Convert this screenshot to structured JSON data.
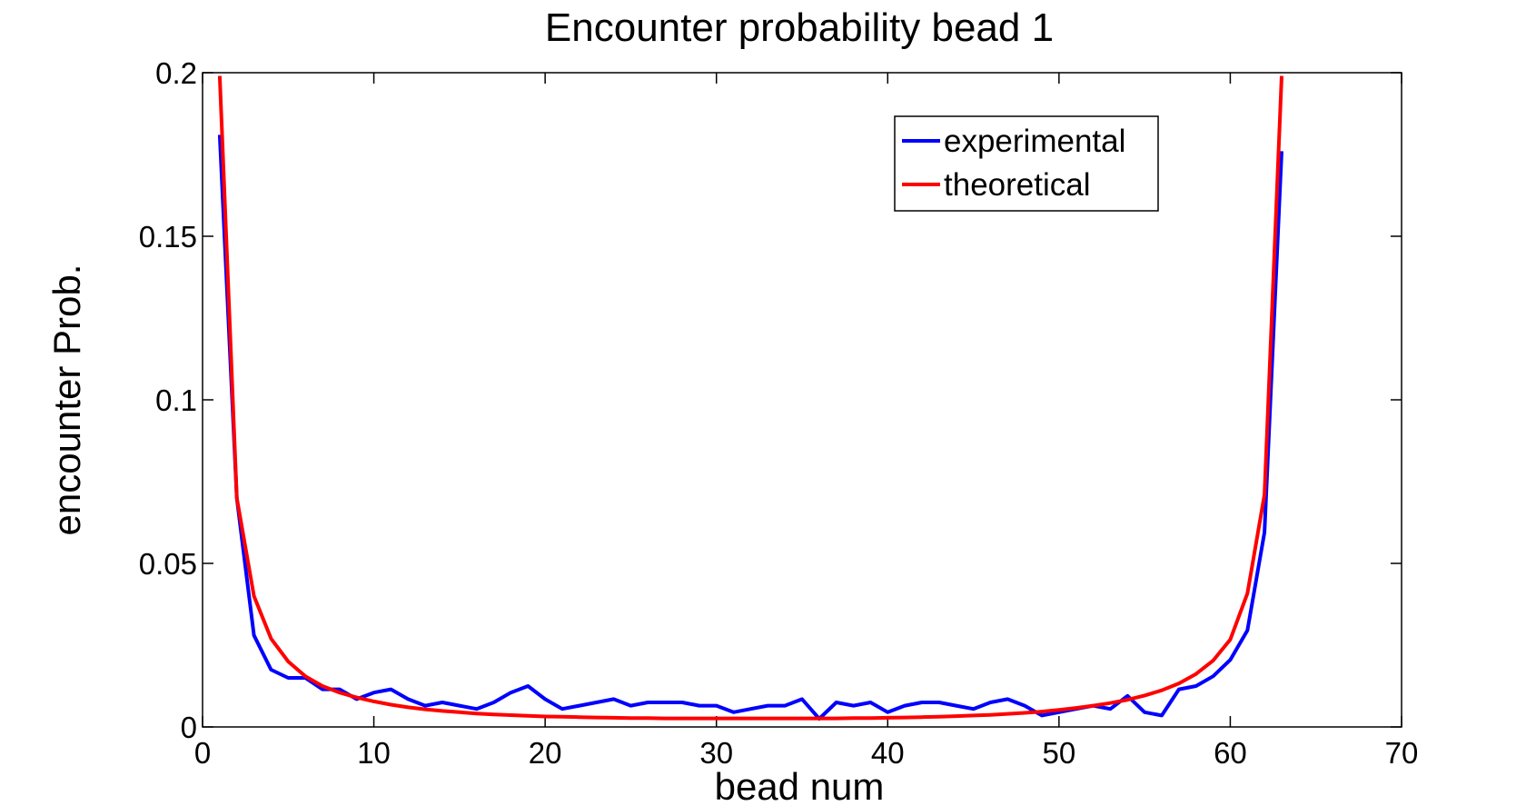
{
  "chart_data": {
    "type": "line",
    "title": "Encounter probability bead 1",
    "xlabel": "bead num",
    "ylabel": "encounter Prob.",
    "xlim": [
      0,
      70
    ],
    "ylim": [
      0,
      0.2
    ],
    "xticks": [
      0,
      10,
      20,
      30,
      40,
      50,
      60,
      70
    ],
    "xtick_labels": [
      "0",
      "10",
      "20",
      "30",
      "40",
      "50",
      "60",
      "70"
    ],
    "yticks": [
      0,
      0.05,
      0.1,
      0.15,
      0.2
    ],
    "ytick_labels": [
      "0",
      "0.05",
      "0.1",
      "0.15",
      "0.2"
    ],
    "grid": false,
    "legend_position": "top-right",
    "series": [
      {
        "name": "experimental",
        "color": "#0000ff",
        "x": [
          1,
          2,
          3,
          4,
          5,
          6,
          7,
          8,
          9,
          10,
          11,
          12,
          13,
          14,
          15,
          16,
          17,
          18,
          19,
          20,
          21,
          22,
          23,
          24,
          25,
          26,
          27,
          28,
          29,
          30,
          31,
          32,
          33,
          34,
          35,
          36,
          37,
          38,
          39,
          40,
          41,
          42,
          43,
          44,
          45,
          46,
          47,
          48,
          49,
          50,
          51,
          52,
          53,
          54,
          55,
          56,
          57,
          58,
          59,
          60,
          61,
          62,
          63
        ],
        "values": [
          0.181,
          0.07,
          0.028,
          0.0175,
          0.015,
          0.015,
          0.0115,
          0.0115,
          0.0085,
          0.0105,
          0.0115,
          0.0085,
          0.0065,
          0.0075,
          0.0065,
          0.0055,
          0.0075,
          0.0105,
          0.0125,
          0.0085,
          0.0055,
          0.0065,
          0.0075,
          0.0085,
          0.0065,
          0.0075,
          0.0075,
          0.0075,
          0.0065,
          0.0065,
          0.0045,
          0.0055,
          0.0065,
          0.0065,
          0.0085,
          0.0025,
          0.0075,
          0.0065,
          0.0075,
          0.0045,
          0.0065,
          0.0075,
          0.0075,
          0.0065,
          0.0055,
          0.0075,
          0.0085,
          0.0065,
          0.0035,
          0.0045,
          0.0055,
          0.0065,
          0.0055,
          0.0095,
          0.0045,
          0.0035,
          0.0115,
          0.0125,
          0.0155,
          0.0205,
          0.0295,
          0.0595,
          0.176
        ]
      },
      {
        "name": "theoretical",
        "color": "#ff0000",
        "x": [
          1,
          2,
          3,
          4,
          5,
          6,
          7,
          8,
          9,
          10,
          11,
          12,
          13,
          14,
          15,
          16,
          17,
          18,
          19,
          20,
          21,
          22,
          23,
          24,
          25,
          26,
          27,
          28,
          29,
          30,
          31,
          32,
          33,
          34,
          35,
          36,
          37,
          38,
          39,
          40,
          41,
          42,
          43,
          44,
          45,
          46,
          47,
          48,
          49,
          50,
          51,
          52,
          53,
          54,
          55,
          56,
          57,
          58,
          59,
          60,
          61,
          62,
          63
        ],
        "values": [
          0.199,
          0.07,
          0.04,
          0.027,
          0.02,
          0.0155,
          0.0125,
          0.0105,
          0.009,
          0.0078,
          0.0068,
          0.006,
          0.0054,
          0.0049,
          0.0045,
          0.0041,
          0.0038,
          0.0036,
          0.0034,
          0.0032,
          0.0031,
          0.003,
          0.0029,
          0.0028,
          0.0027,
          0.0027,
          0.0026,
          0.0026,
          0.0026,
          0.0026,
          0.0026,
          0.0026,
          0.0026,
          0.0026,
          0.0026,
          0.0026,
          0.0026,
          0.0027,
          0.0027,
          0.0028,
          0.0029,
          0.003,
          0.0031,
          0.0033,
          0.0035,
          0.0037,
          0.004,
          0.0043,
          0.0047,
          0.0052,
          0.0058,
          0.0065,
          0.0073,
          0.0083,
          0.0096,
          0.0112,
          0.0133,
          0.0162,
          0.0203,
          0.0267,
          0.0408,
          0.071,
          0.199
        ]
      }
    ]
  }
}
